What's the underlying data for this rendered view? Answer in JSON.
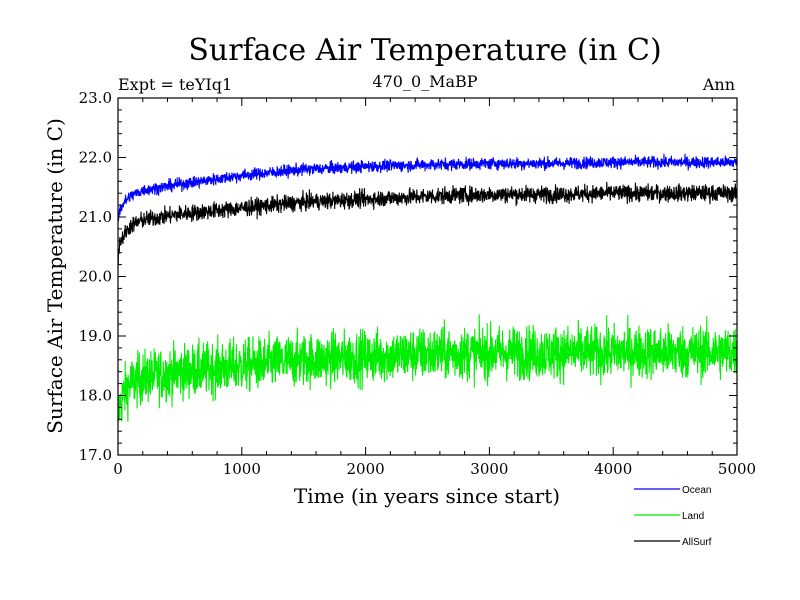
{
  "header": {
    "expt": "Expt = teYIq1",
    "period": "470_0_MaBP",
    "season": "Ann"
  },
  "chart_data": {
    "type": "line",
    "title": "Surface Air Temperature (in C)",
    "xlabel": "Time (in years since start)",
    "ylabel": "Surface Air Temperature (in C)",
    "xlim": [
      0,
      5000
    ],
    "ylim": [
      17.0,
      23.0
    ],
    "xticks": [
      0,
      1000,
      2000,
      3000,
      4000,
      5000
    ],
    "yticks": [
      17.0,
      18.0,
      19.0,
      20.0,
      21.0,
      22.0,
      23.0
    ],
    "grid": false,
    "legend_position": "bottom-right",
    "series": [
      {
        "name": "Ocean",
        "color": "#0000ff",
        "noise": 0.05,
        "x": [
          0,
          10,
          50,
          100,
          200,
          500,
          1000,
          1500,
          2000,
          2500,
          3000,
          3500,
          4000,
          4500,
          5000
        ],
        "values": [
          20.9,
          21.1,
          21.25,
          21.35,
          21.45,
          21.55,
          21.7,
          21.8,
          21.85,
          21.88,
          21.9,
          21.9,
          21.92,
          21.92,
          21.92
        ]
      },
      {
        "name": "Land",
        "color": "#00ee00",
        "noise": 0.22,
        "x": [
          0,
          10,
          50,
          100,
          200,
          500,
          1000,
          1500,
          2000,
          2500,
          3000,
          3500,
          4000,
          4500,
          5000
        ],
        "values": [
          17.4,
          17.8,
          18.05,
          18.2,
          18.3,
          18.4,
          18.5,
          18.6,
          18.65,
          18.7,
          18.72,
          18.72,
          18.73,
          18.73,
          18.73
        ]
      },
      {
        "name": "AllSurf",
        "color": "#000000",
        "noise": 0.07,
        "x": [
          0,
          10,
          50,
          100,
          200,
          500,
          1000,
          1500,
          2000,
          2500,
          3000,
          3500,
          4000,
          4500,
          5000
        ],
        "values": [
          20.2,
          20.55,
          20.7,
          20.85,
          20.95,
          21.05,
          21.15,
          21.25,
          21.3,
          21.35,
          21.38,
          21.38,
          21.4,
          21.4,
          21.4
        ]
      }
    ]
  }
}
